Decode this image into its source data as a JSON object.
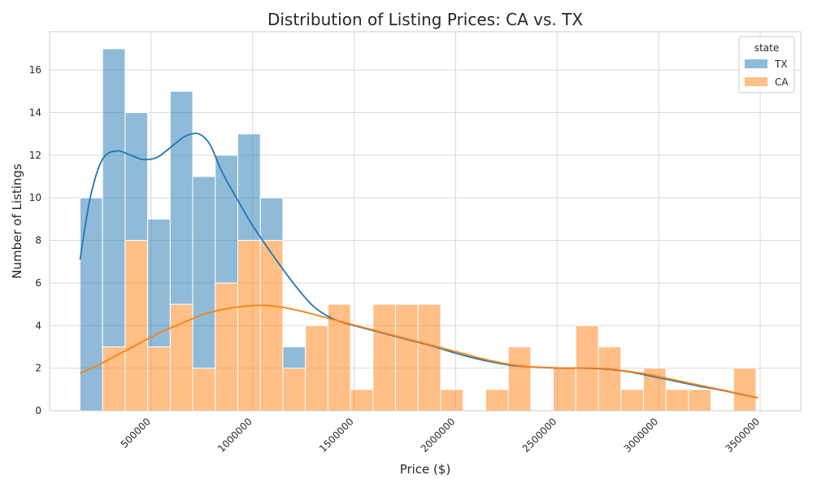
{
  "chart_data": {
    "type": "bar",
    "subtype": "stacked-histogram-with-kde",
    "title": "Distribution of Listing Prices: CA vs. TX",
    "xlabel": "Price ($)",
    "ylabel": "Number of Listings",
    "xlim": [
      0,
      3700000
    ],
    "ylim": [
      0,
      17.8
    ],
    "x_ticks": [
      500000,
      1000000,
      1500000,
      2000000,
      2500000,
      3000000,
      3500000
    ],
    "x_tick_labels": [
      "500000",
      "1000000",
      "1500000",
      "2000000",
      "2500000",
      "3000000",
      "3500000"
    ],
    "y_ticks": [
      0,
      2,
      4,
      6,
      8,
      10,
      12,
      14,
      16
    ],
    "y_tick_labels": [
      "0",
      "2",
      "4",
      "6",
      "8",
      "10",
      "12",
      "14",
      "16"
    ],
    "grid": true,
    "legend": {
      "title": "state",
      "placement": "top-right"
    },
    "bin_edges": [
      150000,
      261000,
      372000,
      483000,
      594000,
      705000,
      816000,
      927000,
      1038000,
      1149000,
      1260000,
      1371000,
      1482000,
      1593000,
      1704000,
      1815000,
      1926000,
      2037000,
      2148000,
      2259000,
      2370000,
      2481000,
      2592000,
      2703000,
      2814000,
      2925000,
      3036000,
      3147000,
      3258000,
      3369000,
      3480000
    ],
    "series": [
      {
        "name": "TX",
        "color": "#1f77b4",
        "values": [
          10,
          14,
          6,
          6,
          10,
          9,
          6,
          5,
          2,
          1,
          0,
          0,
          0,
          0,
          0,
          0,
          0,
          0,
          0,
          0,
          0,
          0,
          0,
          0,
          0,
          0,
          0,
          0,
          0,
          0
        ]
      },
      {
        "name": "CA",
        "color": "#ff7f0e",
        "values": [
          0,
          3,
          8,
          3,
          5,
          2,
          6,
          8,
          8,
          2,
          4,
          5,
          1,
          5,
          5,
          5,
          1,
          0,
          1,
          3,
          0,
          2,
          4,
          3,
          1,
          2,
          1,
          1,
          0,
          2
        ]
      }
    ],
    "kde": [
      {
        "name": "TX",
        "x": [
          150000,
          200000,
          260000,
          330000,
          400000,
          460000,
          530000,
          600000,
          670000,
          735000,
          790000,
          850000,
          920000,
          1000000,
          1100000,
          1200000,
          1300000,
          1400000,
          1500000,
          1600000,
          1700000,
          1800000,
          1900000,
          2000000,
          2100000,
          2200000,
          2300000,
          2400000,
          2500000,
          2600000,
          2700000,
          2800000,
          2900000,
          3000000,
          3100000,
          3200000,
          3300000,
          3400000,
          3490000
        ],
        "y": [
          7.1,
          10.0,
          11.8,
          12.2,
          12.0,
          11.8,
          11.9,
          12.4,
          12.9,
          13.0,
          12.5,
          11.2,
          10.0,
          8.7,
          7.3,
          6.0,
          4.9,
          4.3,
          4.0,
          3.75,
          3.5,
          3.25,
          3.0,
          2.7,
          2.45,
          2.25,
          2.1,
          2.05,
          2.0,
          2.0,
          1.98,
          1.9,
          1.75,
          1.55,
          1.35,
          1.15,
          0.98,
          0.78,
          0.6
        ]
      },
      {
        "name": "CA",
        "x": [
          150000,
          250000,
          350000,
          450000,
          550000,
          650000,
          750000,
          850000,
          950000,
          1050000,
          1150000,
          1250000,
          1350000,
          1450000,
          1550000,
          1650000,
          1750000,
          1850000,
          1950000,
          2050000,
          2150000,
          2250000,
          2350000,
          2450000,
          2550000,
          2650000,
          2750000,
          2850000,
          2950000,
          3050000,
          3150000,
          3250000,
          3350000,
          3490000
        ],
        "y": [
          1.75,
          2.2,
          2.7,
          3.2,
          3.7,
          4.1,
          4.5,
          4.75,
          4.9,
          4.95,
          4.85,
          4.65,
          4.4,
          4.15,
          3.9,
          3.65,
          3.4,
          3.15,
          2.9,
          2.65,
          2.4,
          2.2,
          2.08,
          2.03,
          2.0,
          2.0,
          1.97,
          1.85,
          1.7,
          1.5,
          1.3,
          1.1,
          0.9,
          0.6
        ]
      }
    ]
  }
}
